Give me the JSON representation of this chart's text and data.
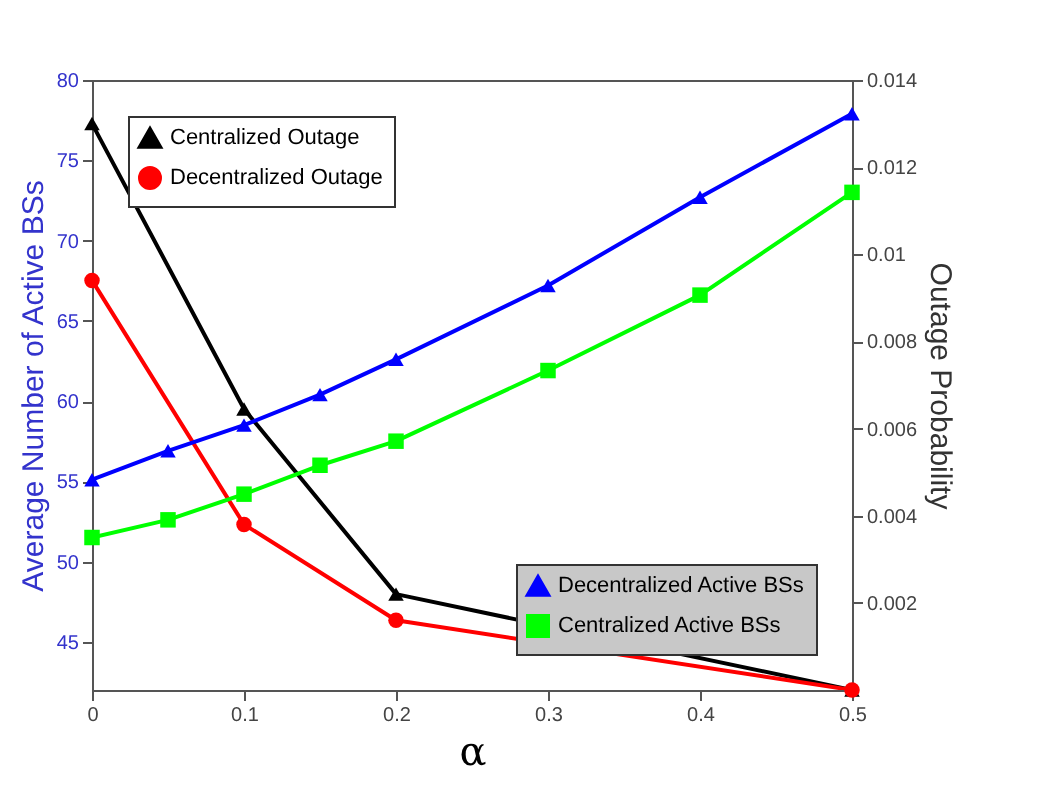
{
  "chart_data": {
    "type": "line",
    "xlabel": "α",
    "ylabel": "Average Number of Active BSs",
    "y2label": "Outage Probability",
    "xlim": [
      0,
      0.5
    ],
    "xticks": [
      0,
      0.1,
      0.2,
      0.3,
      0.4,
      0.5
    ],
    "ylim": [
      42,
      80
    ],
    "yticks": [
      45,
      50,
      55,
      60,
      65,
      70,
      75,
      80
    ],
    "y2lim": [
      0,
      0.014
    ],
    "y2ticks": [
      0.002,
      0.004,
      0.006,
      0.008,
      0.01,
      0.012,
      0.014
    ],
    "grid": false,
    "line_style": "solid",
    "legend": "top left",
    "series": [
      {
        "name": "Centralized Outage",
        "color": "#000000",
        "axis": "y2",
        "marker": "triangle",
        "x": [
          0,
          0.1,
          0.2,
          0.5
        ],
        "values": [
          0.013,
          0.00645,
          0.0022,
          0
        ]
      },
      {
        "name": "Decentralized Outage",
        "color": "#ff0000",
        "axis": "y2",
        "marker": "circle",
        "x": [
          0,
          0.1,
          0.2,
          0.5
        ],
        "values": [
          0.0094,
          0.0038,
          0.0016,
          0
        ]
      },
      {
        "name": "Decentralized Active BSs",
        "color": "#0000ff",
        "axis": "y",
        "marker": "triangle",
        "x": [
          0,
          0.05,
          0.1,
          0.15,
          0.2,
          0.3,
          0.4,
          0.5
        ],
        "values": [
          55.1,
          56.9,
          58.5,
          60.4,
          62.6,
          67.2,
          72.7,
          77.9
        ]
      },
      {
        "name": "Centralized Active BSs",
        "color": "#00ff00",
        "axis": "y",
        "marker": "square",
        "x": [
          0,
          0.05,
          0.1,
          0.15,
          0.2,
          0.3,
          0.4,
          0.5
        ],
        "values": [
          51.5,
          52.6,
          54.2,
          56.0,
          57.5,
          61.9,
          66.6,
          73.0
        ]
      }
    ]
  }
}
